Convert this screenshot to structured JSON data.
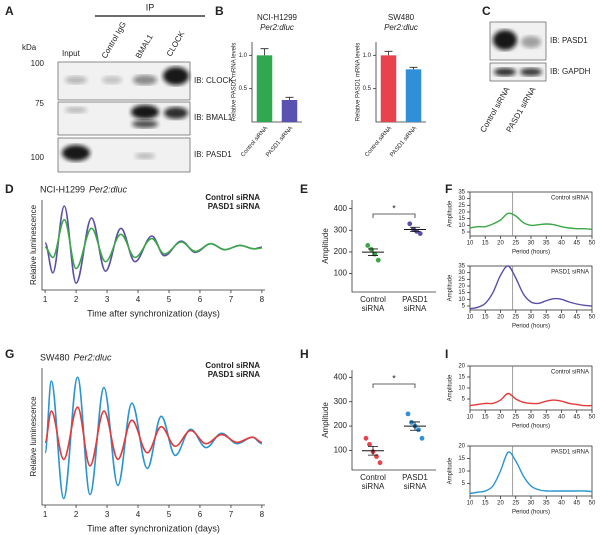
{
  "blots": [
    {
      "panel": "A",
      "header": "IP",
      "unit": "kDa",
      "lanes": [
        "Input",
        "Control IgG",
        "BMAL1",
        "CLOCK"
      ],
      "rows": [
        {
          "marker": 100,
          "label": "IB: CLOCK"
        },
        {
          "marker": 75,
          "label": "IB: BMAL1"
        },
        {
          "marker": 100,
          "label": "IB: PASD1"
        }
      ]
    },
    {
      "panel": "C",
      "lanes": [
        "Control siRNA",
        "PASD1 siRNA"
      ],
      "rows": [
        {
          "label": "IB: PASD1"
        },
        {
          "label": "IB: GAPDH"
        }
      ]
    }
  ],
  "chart_data": [
    {
      "type": "bar",
      "panel": "B",
      "title": "NCI-H1299",
      "subtitle": "Per2:dluc",
      "categories": [
        "Control siRNA",
        "PASD1 siRNA"
      ],
      "values": [
        1.0,
        0.33
      ],
      "errors": [
        0.1,
        0.04
      ],
      "colors": [
        "#2fa84f",
        "#5a52b0"
      ],
      "ylabel": "Relative PASD1 mRNA levels",
      "ylim": [
        0,
        1.2
      ],
      "yticks": [
        0.5,
        {
          "value": 1,
          "label": "1.0"
        }
      ]
    },
    {
      "type": "bar",
      "title": "SW480",
      "subtitle": "Per2:dluc",
      "categories": [
        "Control siRNA",
        "PASD1 siRNA"
      ],
      "values": [
        1.0,
        0.79
      ],
      "errors": [
        0.06,
        0.03
      ],
      "colors": [
        "#e8434b",
        "#2f8fd8"
      ],
      "ylabel": "Relative PASD1 mRNA levels",
      "ylim": [
        0,
        1.2
      ],
      "yticks": [
        0.5,
        {
          "value": 1,
          "label": "1.0"
        }
      ]
    },
    {
      "type": "line",
      "panel": "D",
      "title": "NCI-H1299",
      "subtitle": "Per2:dluc",
      "xlabel": "Time after synchronization (days)",
      "ylabel": "Relative luminescence",
      "x": [
        1,
        1.25,
        1.62,
        2.0,
        2.5,
        2.95,
        3.45,
        3.9,
        4.45,
        4.85,
        5.4,
        5.85,
        6.35,
        6.8,
        7.3,
        7.75,
        8
      ],
      "xlim": [
        0.9,
        8.1
      ],
      "xticks": [
        1,
        2,
        3,
        4,
        5,
        6,
        7,
        8
      ],
      "ylim": [
        0,
        105
      ],
      "legend": "upper right",
      "series": [
        {
          "name": "Control siRNA",
          "color": "#3aa845",
          "values": [
            50,
            38,
            82,
            25,
            72,
            33,
            65,
            38,
            60,
            42,
            56,
            45,
            54,
            47,
            52,
            48,
            49
          ]
        },
        {
          "name": "PASD1 siRNA",
          "color": "#5b4ea8",
          "values": [
            55,
            20,
            98,
            8,
            84,
            22,
            72,
            33,
            63,
            40,
            57,
            44,
            54,
            47,
            52,
            48,
            50
          ]
        }
      ]
    },
    {
      "type": "dot",
      "panel": "E",
      "ylabel": "Amplitude",
      "categories": [
        "Control siRNA",
        "PASD1 siRNA"
      ],
      "values": [
        [
          230,
          212,
          190,
          162
        ],
        [
          330,
          305,
          295,
          285
        ]
      ],
      "means": [
        199,
        304
      ],
      "errors": [
        15,
        10
      ],
      "colors": [
        "#3aa845",
        "#5b4ea8"
      ],
      "annotation": "*",
      "ylim": [
        15,
        440
      ],
      "yticks": [
        100,
        200,
        300,
        400
      ]
    },
    {
      "type": "line",
      "panel": "F",
      "xlabel": "Period (hours)",
      "ylabel": "Amplitude",
      "x": [
        10,
        12.5,
        15,
        17.5,
        20,
        22.5,
        25,
        27.5,
        30,
        32.5,
        35,
        37.5,
        40,
        42.5,
        45,
        47.5,
        50
      ],
      "xlim": [
        10,
        50
      ],
      "xticks": [
        10,
        15,
        20,
        25,
        30,
        35,
        40,
        45,
        50
      ],
      "ylim": [
        2,
        35
      ],
      "yticks": [
        5,
        10,
        15,
        20,
        25,
        30,
        35
      ],
      "vline": 24,
      "series": [
        {
          "name": "Control siRNA",
          "color": "#3aa845",
          "values": [
            8,
            9,
            9,
            11,
            14,
            19,
            17,
            12,
            10,
            10.5,
            11,
            10.5,
            9,
            8,
            7.5,
            7.5,
            7
          ]
        }
      ]
    },
    {
      "type": "line",
      "xlabel": "Period (hours)",
      "ylabel": "Amplitude",
      "x": [
        10,
        12.5,
        15,
        17.5,
        20,
        22.5,
        25,
        27.5,
        30,
        32.5,
        35,
        37.5,
        40,
        42.5,
        45,
        47.5,
        50
      ],
      "xlim": [
        10,
        50
      ],
      "xticks": [
        10,
        15,
        20,
        25,
        30,
        35,
        40,
        45,
        50
      ],
      "ylim": [
        2,
        35
      ],
      "yticks": [
        5,
        10,
        15,
        20,
        25,
        30,
        35
      ],
      "vline": 24,
      "series": [
        {
          "name": "PASD1 siRNA",
          "color": "#5b4ea8",
          "values": [
            3,
            4,
            7,
            15,
            28,
            35,
            26,
            14,
            8,
            7,
            9,
            10.5,
            10,
            8,
            6.5,
            5.5,
            5
          ]
        }
      ]
    },
    {
      "type": "line",
      "panel": "G",
      "title": "SW480",
      "subtitle": "Per2:dluc",
      "xlabel": "Time after synchronization (days)",
      "ylabel": "Relative luminescence",
      "x": [
        1,
        1.2,
        1.6,
        2.05,
        2.45,
        2.9,
        3.35,
        3.8,
        4.3,
        4.75,
        5.2,
        5.7,
        6.2,
        6.7,
        7.2,
        7.7,
        8
      ],
      "xlim": [
        0.9,
        8.1
      ],
      "xticks": [
        1,
        2,
        3,
        4,
        5,
        6,
        7,
        8
      ],
      "ylim": [
        0,
        105
      ],
      "legend": "upper right",
      "series": [
        {
          "name": "Control siRNA",
          "color": "#e33b3b",
          "values": [
            48,
            72,
            35,
            75,
            30,
            72,
            35,
            65,
            40,
            60,
            45,
            57,
            47,
            54,
            48,
            52,
            48
          ]
        },
        {
          "name": "PASD1 siRNA",
          "color": "#2a94d0",
          "values": [
            40,
            95,
            5,
            98,
            8,
            90,
            15,
            78,
            28,
            68,
            38,
            58,
            44,
            55,
            47,
            52,
            47
          ]
        }
      ]
    },
    {
      "type": "dot",
      "panel": "H",
      "ylabel": "Amplitude",
      "categories": [
        "Control siRNA",
        "PASD1 siRNA"
      ],
      "values": [
        [
          150,
          125,
          95,
          75,
          50
        ],
        [
          250,
          215,
          200,
          185,
          150
        ]
      ],
      "means": [
        99,
        200
      ],
      "errors": [
        18,
        17
      ],
      "colors": [
        "#e8434b",
        "#2f8fd8"
      ],
      "annotation": "*",
      "ylim": [
        20,
        430
      ],
      "yticks": [
        100,
        200,
        300,
        400
      ]
    },
    {
      "type": "line",
      "panel": "I",
      "xlabel": "Period (hours)",
      "ylabel": "Amplitude",
      "x": [
        10,
        12.5,
        15,
        17.5,
        20,
        22.5,
        25,
        27.5,
        30,
        32.5,
        35,
        37.5,
        40,
        42.5,
        45,
        47.5,
        50
      ],
      "xlim": [
        10,
        50
      ],
      "xticks": [
        10,
        15,
        20,
        25,
        30,
        35,
        40,
        45,
        50
      ],
      "ylim": [
        0,
        20
      ],
      "yticks": [
        5,
        10,
        15,
        20
      ],
      "vline": 24,
      "series": [
        {
          "name": "Control siRNA",
          "color": "#e33b3b",
          "values": [
            2,
            2.5,
            3,
            3,
            4.5,
            7.5,
            5,
            3.5,
            3,
            3,
            4,
            4.5,
            4,
            3,
            2.5,
            2,
            2
          ]
        }
      ]
    },
    {
      "type": "line",
      "xlabel": "Period (hours)",
      "ylabel": "Amplitude",
      "x": [
        10,
        12.5,
        15,
        17.5,
        20,
        22.5,
        25,
        27.5,
        30,
        32.5,
        35,
        37.5,
        40,
        42.5,
        45,
        47.5,
        50
      ],
      "xlim": [
        10,
        50
      ],
      "xticks": [
        10,
        15,
        20,
        25,
        30,
        35,
        40,
        45,
        50
      ],
      "ylim": [
        0,
        20
      ],
      "yticks": [
        5,
        10,
        15,
        20
      ],
      "vline": 24,
      "series": [
        {
          "name": "PASD1 siRNA",
          "color": "#2a94d0",
          "values": [
            1,
            1.5,
            2,
            4,
            10,
            17.5,
            14,
            8,
            4,
            2.5,
            2,
            2,
            2,
            2,
            2,
            2,
            1.8
          ]
        }
      ]
    }
  ]
}
